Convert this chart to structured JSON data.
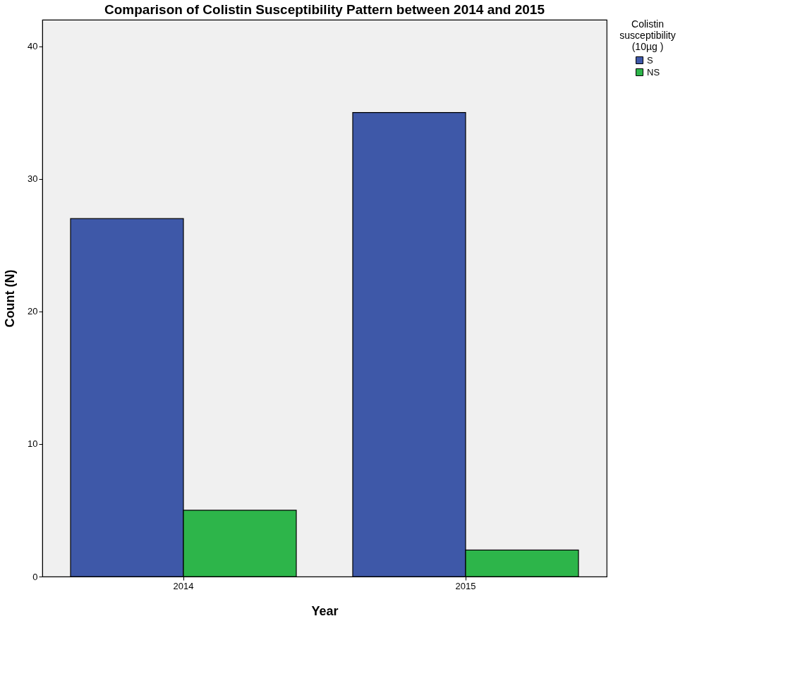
{
  "chart_data": {
    "type": "bar",
    "title": "Comparison of Colistin Susceptibility Pattern between 2014 and 2015",
    "xlabel": "Year",
    "ylabel": "Count (N)",
    "legend_title": "Colistin susceptibility (10µg )",
    "categories": [
      "2014",
      "2015"
    ],
    "series": [
      {
        "name": "S",
        "color": "#3e58a8",
        "values": [
          27,
          35
        ]
      },
      {
        "name": "NS",
        "color": "#2db54a",
        "values": [
          5,
          2
        ]
      }
    ],
    "ylim": [
      0,
      42
    ],
    "yticks": [
      0,
      10,
      20,
      30,
      40
    ],
    "grid": false,
    "legend": "top right"
  }
}
